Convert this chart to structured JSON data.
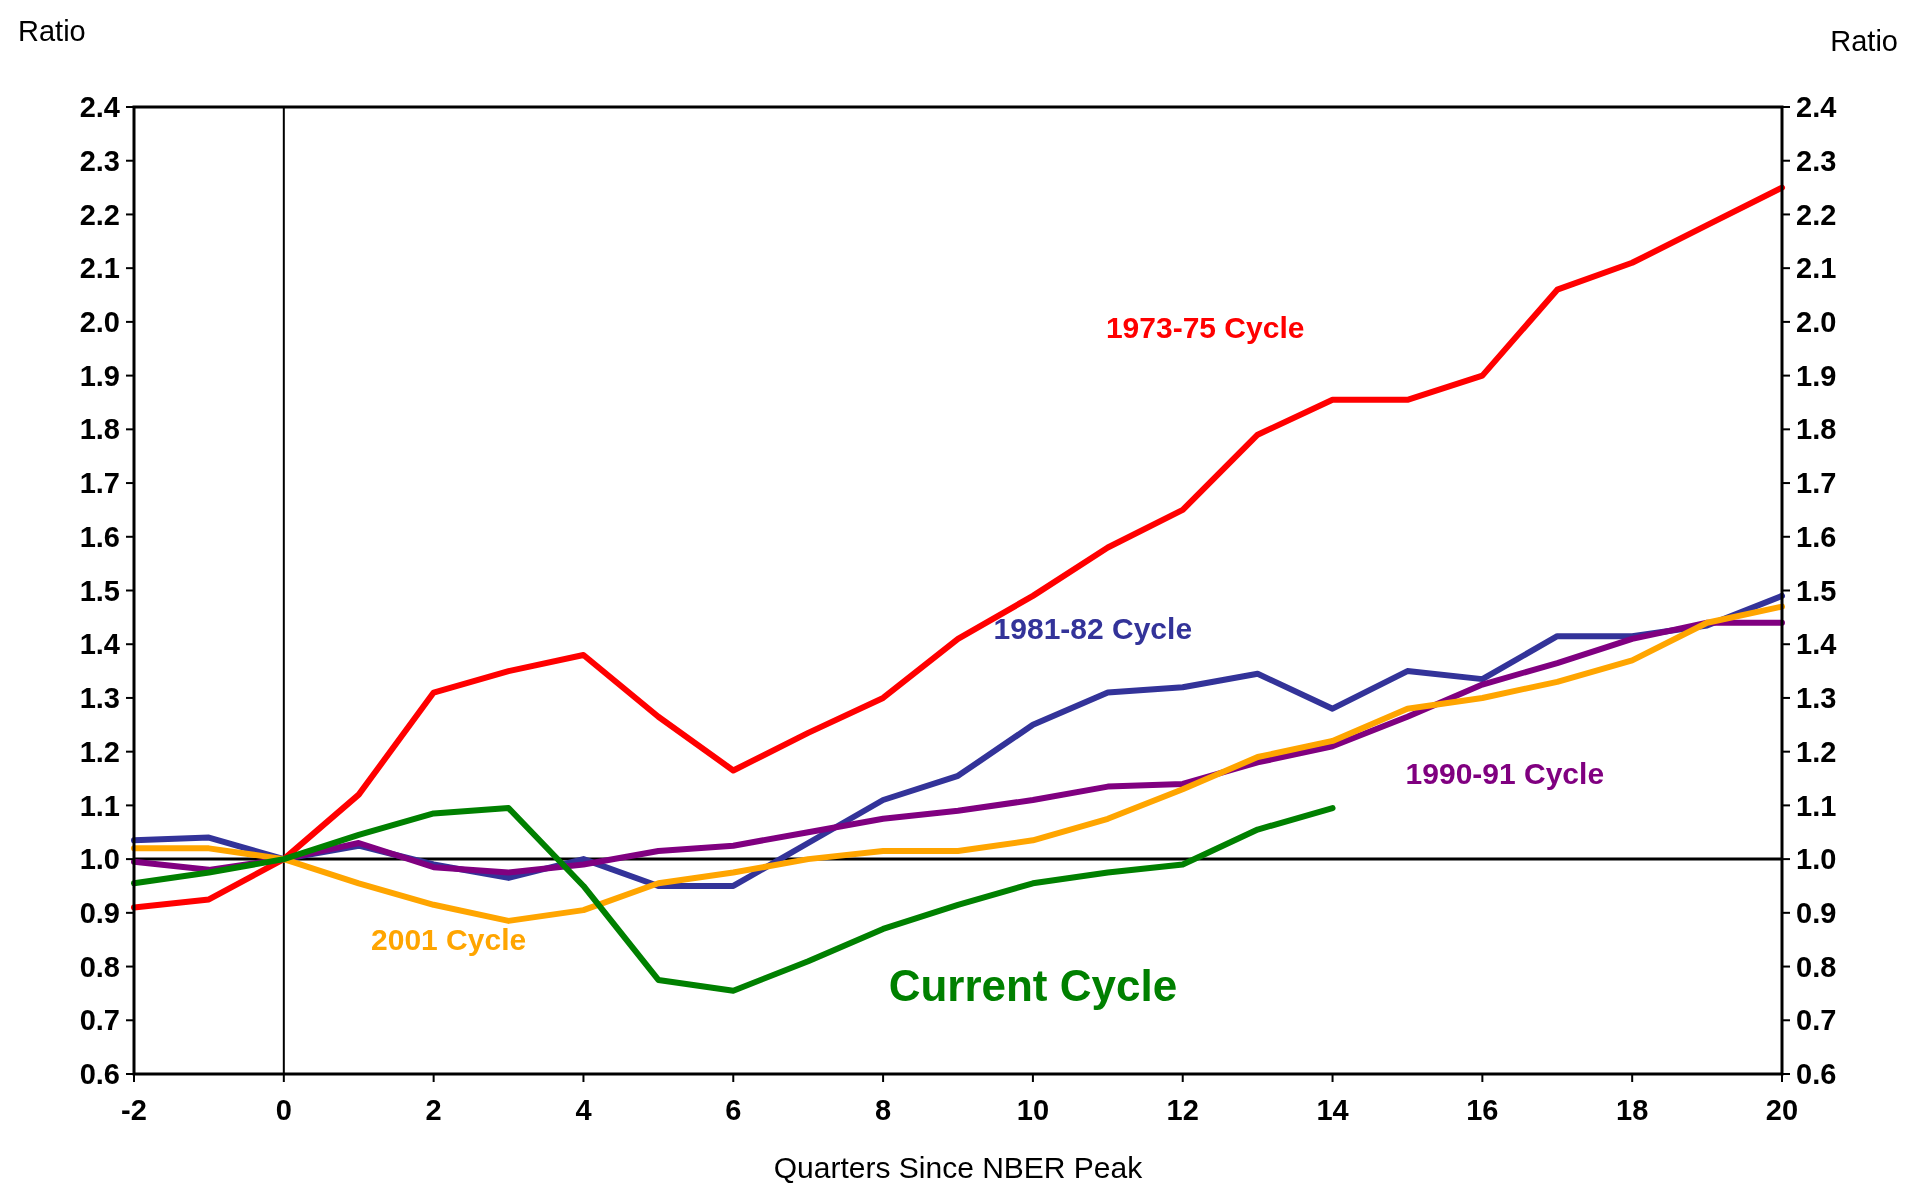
{
  "chart_data": {
    "type": "line",
    "xlabel": "Quarters Since NBER Peak",
    "ylabel": "Ratio",
    "y2label": "Ratio",
    "x": [
      -2,
      -1,
      0,
      1,
      2,
      3,
      4,
      5,
      6,
      7,
      8,
      9,
      10,
      11,
      12,
      13,
      14,
      15,
      16,
      17,
      18,
      19,
      20
    ],
    "xlim": [
      -2,
      20
    ],
    "xticks": [
      -2,
      0,
      2,
      4,
      6,
      8,
      10,
      12,
      14,
      16,
      18,
      20
    ],
    "ylim": [
      0.6,
      2.4
    ],
    "yticks": [
      {
        "value": 0.6,
        "label": "0.6"
      },
      {
        "value": 0.7,
        "label": "0.7"
      },
      {
        "value": 0.8,
        "label": "0.8"
      },
      {
        "value": 0.9,
        "label": "0.9"
      },
      {
        "value": 1.0,
        "label": "1.0"
      },
      {
        "value": 1.1,
        "label": "1.1"
      },
      {
        "value": 1.2,
        "label": "1.2"
      },
      {
        "value": 1.3,
        "label": "1.3"
      },
      {
        "value": 1.4,
        "label": "1.4"
      },
      {
        "value": 1.5,
        "label": "1.5"
      },
      {
        "value": 1.6,
        "label": "1.6"
      },
      {
        "value": 1.7,
        "label": "1.7"
      },
      {
        "value": 1.8,
        "label": "1.8"
      },
      {
        "value": 1.9,
        "label": "1.9"
      },
      {
        "value": 2.0,
        "label": "2.0"
      },
      {
        "value": 2.1,
        "label": "2.1"
      },
      {
        "value": 2.2,
        "label": "2.2"
      },
      {
        "value": 2.3,
        "label": "2.3"
      },
      {
        "value": 2.4,
        "label": "2.4"
      }
    ],
    "y2lim": [
      0.6,
      2.4
    ],
    "y2ticks": [
      {
        "value": 0.6,
        "label": "0.6"
      },
      {
        "value": 0.7,
        "label": "0.7"
      },
      {
        "value": 0.8,
        "label": "0.8"
      },
      {
        "value": 0.9,
        "label": "0.9"
      },
      {
        "value": 1.0,
        "label": "1.0"
      },
      {
        "value": 1.1,
        "label": "1.1"
      },
      {
        "value": 1.2,
        "label": "1.2"
      },
      {
        "value": 1.3,
        "label": "1.3"
      },
      {
        "value": 1.4,
        "label": "1.4"
      },
      {
        "value": 1.5,
        "label": "1.5"
      },
      {
        "value": 1.6,
        "label": "1.6"
      },
      {
        "value": 1.7,
        "label": "1.7"
      },
      {
        "value": 1.8,
        "label": "1.8"
      },
      {
        "value": 1.9,
        "label": "1.9"
      },
      {
        "value": 2.0,
        "label": "2.0"
      },
      {
        "value": 2.1,
        "label": "2.1"
      },
      {
        "value": 2.2,
        "label": "2.2"
      },
      {
        "value": 2.3,
        "label": "2.3"
      },
      {
        "value": 2.4,
        "label": "2.4"
      }
    ],
    "grid": false,
    "marker": "none",
    "line_style": "solid",
    "ref_lines": [
      {
        "axis": "y",
        "value": 1.0,
        "color": "#000000"
      },
      {
        "axis": "x",
        "value": 0,
        "color": "#000000"
      }
    ],
    "series": [
      {
        "name": "1973-75 Cycle",
        "color": "#ff0000",
        "values": [
          0.91,
          0.925,
          1.0,
          1.12,
          1.31,
          1.35,
          1.38,
          1.265,
          1.165,
          1.235,
          1.3,
          1.41,
          1.49,
          1.58,
          1.65,
          1.79,
          1.855,
          1.855,
          1.9,
          2.06,
          2.11,
          2.18,
          2.25
        ]
      },
      {
        "name": "1981-82 Cycle",
        "color": "#333399",
        "values": [
          1.035,
          1.04,
          1.0,
          1.025,
          0.99,
          0.965,
          1.0,
          0.95,
          0.95,
          1.03,
          1.11,
          1.155,
          1.25,
          1.31,
          1.32,
          1.345,
          1.28,
          1.35,
          1.335,
          1.415,
          1.415,
          1.435,
          1.49
        ]
      },
      {
        "name": "1990-91 Cycle",
        "color": "#800080",
        "values": [
          0.995,
          0.98,
          1.0,
          1.03,
          0.985,
          0.975,
          0.99,
          1.015,
          1.025,
          1.05,
          1.075,
          1.09,
          1.11,
          1.135,
          1.14,
          1.18,
          1.21,
          1.265,
          1.325,
          1.365,
          1.41,
          1.44,
          1.44
        ]
      },
      {
        "name": "2001 Cycle",
        "color": "#ffa500",
        "values": [
          1.02,
          1.02,
          1.0,
          0.955,
          0.915,
          0.885,
          0.905,
          0.955,
          0.975,
          1.0,
          1.015,
          1.015,
          1.035,
          1.075,
          1.13,
          1.19,
          1.22,
          1.28,
          1.3,
          1.33,
          1.37,
          1.44,
          1.47
        ]
      },
      {
        "name": "Current Cycle",
        "color": "#008000",
        "values": [
          0.955,
          0.975,
          1.0,
          1.045,
          1.085,
          1.095,
          0.95,
          0.775,
          0.755,
          0.81,
          0.87,
          0.915,
          0.955,
          0.975,
          0.99,
          1.055,
          1.095,
          null,
          null,
          null,
          null,
          null,
          null
        ]
      }
    ]
  }
}
